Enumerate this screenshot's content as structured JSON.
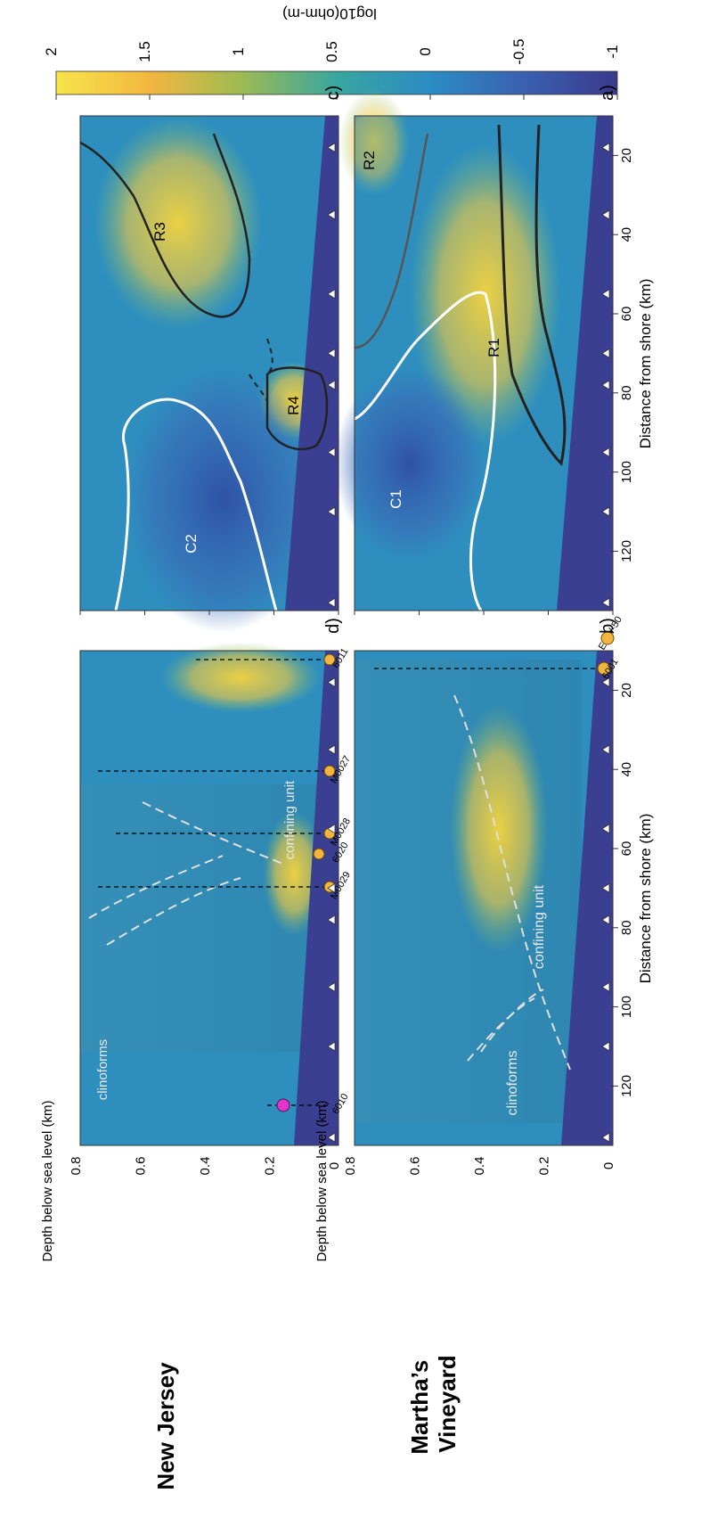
{
  "labels": {
    "region_top": "Martha’s\nVineyard",
    "region_bottom": "New Jersey"
  },
  "colorbar": {
    "title": "log10(ohm-m)",
    "ticks": [
      "2",
      "1.5",
      "1",
      "0.5",
      "0",
      "-0.5",
      "-1"
    ],
    "colors": [
      "#f7e44a",
      "#f2b640",
      "#9dbb52",
      "#38a6a0",
      "#2b8cc4",
      "#3a61b0",
      "#3a3a8c"
    ]
  },
  "axes": {
    "xlabel": "Distance from shore (km)",
    "ylabel": "Depth below sea level (km)",
    "xticks": [
      "20",
      "40",
      "60",
      "80",
      "100",
      "120"
    ],
    "yticks": [
      "0",
      "0.2",
      "0.4",
      "0.6",
      "0.8"
    ]
  },
  "panels": {
    "a": {
      "label": "a)",
      "zones": [
        "R1",
        "R2",
        "C1"
      ]
    },
    "b": {
      "label": "b)",
      "annotations": [
        "confining unit",
        "clinoforms"
      ],
      "wells": [
        "ENW-50",
        "6001"
      ],
      "log_scale": "0 15 30"
    },
    "c": {
      "label": "c)",
      "zones": [
        "R3",
        "R4",
        "C2"
      ]
    },
    "d": {
      "label": "d)",
      "annotations": [
        "confining unit",
        "clinoforms"
      ],
      "wells": [
        "6011",
        "M0027",
        "M0028",
        "6020",
        "M0029",
        "6010"
      ],
      "log_scale": "0 15 30",
      "log_scale_wide": "0 15 30 60"
    }
  },
  "chart_data": [
    {
      "type": "heatmap",
      "panel": "a",
      "title": "",
      "xlabel": "Distance from shore (km)",
      "ylabel": "Depth below sea level (km)",
      "xlim": [
        10,
        135
      ],
      "ylim": [
        0.8,
        0
      ],
      "colorscale": "log10(ohm-m)",
      "clim": [
        -1,
        2
      ],
      "zones": [
        {
          "name": "R1",
          "x": 37,
          "y": 0.25,
          "contour": "black"
        },
        {
          "name": "R2",
          "x": 19,
          "y": 0.7,
          "contour": "gray"
        },
        {
          "name": "C1",
          "x": 72,
          "y": 0.6,
          "contour": "white"
        }
      ],
      "stations_km": [
        18,
        35,
        55,
        70,
        78,
        95,
        110,
        133
      ]
    },
    {
      "type": "heatmap",
      "panel": "b",
      "title": "",
      "xlim": [
        10,
        135
      ],
      "ylim": [
        0.8,
        0
      ],
      "annotations": [
        "confining unit",
        "clinoforms"
      ],
      "wells": [
        {
          "name": "ENW-50",
          "x_km": 7
        },
        {
          "name": "6001",
          "x_km": 19
        }
      ]
    },
    {
      "type": "heatmap",
      "panel": "c",
      "title": "",
      "xlabel": "Distance from shore (km)",
      "ylabel": "Depth below sea level (km)",
      "xlim": [
        10,
        135
      ],
      "ylim": [
        0.8,
        0
      ],
      "zones": [
        {
          "name": "R3",
          "x": 22,
          "y": 0.25,
          "contour": "black"
        },
        {
          "name": "R4",
          "x": 70,
          "y": 0.13,
          "contour": "black"
        },
        {
          "name": "C2",
          "x": 100,
          "y": 0.55,
          "contour": "white"
        }
      ]
    },
    {
      "type": "heatmap",
      "panel": "d",
      "title": "",
      "xlabel": "Distance from shore (km)",
      "xlim": [
        10,
        135
      ],
      "ylim": [
        0.8,
        0
      ],
      "annotations": [
        "confining unit",
        "clinoforms"
      ],
      "wells": [
        {
          "name": "6011",
          "x_km": 21
        },
        {
          "name": "M0027",
          "x_km": 50
        },
        {
          "name": "M0028",
          "x_km": 66
        },
        {
          "name": "6020",
          "x_km": 70
        },
        {
          "name": "M0029",
          "x_km": 76
        },
        {
          "name": "6010",
          "x_km": 127
        }
      ]
    }
  ]
}
